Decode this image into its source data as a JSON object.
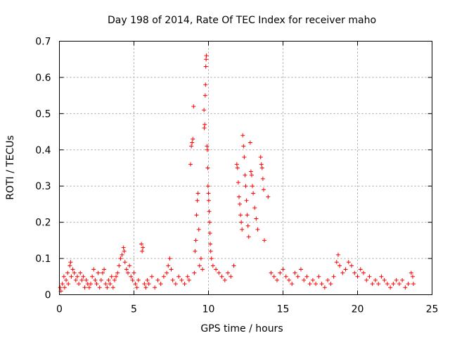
{
  "chart_data": {
    "type": "scatter",
    "title": "Day 198 of 2014, Rate Of TEC Index for receiver maho",
    "xlabel": "GPS time / hours",
    "ylabel": "ROTI / TECUs",
    "xlim": [
      0,
      25
    ],
    "ylim": [
      0,
      0.7
    ],
    "xticks": [
      0,
      5,
      10,
      15,
      20,
      25
    ],
    "yticks": [
      0,
      0.1,
      0.2,
      0.3,
      0.4,
      0.5,
      0.6,
      0.7
    ],
    "xtick_labels": [
      "0",
      "5",
      "10",
      "15",
      "20",
      "25"
    ],
    "ytick_labels": [
      "0",
      "0.1",
      "0.2",
      "0.3",
      "0.4",
      "0.5",
      "0.6",
      "0.7"
    ],
    "grid": true,
    "marker": "+",
    "color": "#ff0000",
    "series": [
      {
        "points": [
          [
            0.05,
            0.02
          ],
          [
            0.1,
            0.01
          ],
          [
            0.2,
            0.03
          ],
          [
            0.3,
            0.05
          ],
          [
            0.35,
            0.02
          ],
          [
            0.45,
            0.04
          ],
          [
            0.55,
            0.06
          ],
          [
            0.6,
            0.03
          ],
          [
            0.7,
            0.08
          ],
          [
            0.75,
            0.09
          ],
          [
            0.8,
            0.05
          ],
          [
            0.9,
            0.07
          ],
          [
            1.0,
            0.06
          ],
          [
            1.1,
            0.04
          ],
          [
            1.2,
            0.05
          ],
          [
            1.3,
            0.03
          ],
          [
            1.4,
            0.06
          ],
          [
            1.5,
            0.04
          ],
          [
            1.6,
            0.05
          ],
          [
            1.7,
            0.02
          ],
          [
            1.8,
            0.04
          ],
          [
            1.9,
            0.03
          ],
          [
            2.0,
            0.02
          ],
          [
            2.1,
            0.03
          ],
          [
            2.2,
            0.05
          ],
          [
            2.3,
            0.07
          ],
          [
            2.4,
            0.04
          ],
          [
            2.5,
            0.03
          ],
          [
            2.6,
            0.06
          ],
          [
            2.7,
            0.02
          ],
          [
            2.8,
            0.04
          ],
          [
            2.9,
            0.06
          ],
          [
            3.0,
            0.07
          ],
          [
            3.1,
            0.03
          ],
          [
            3.2,
            0.02
          ],
          [
            3.3,
            0.04
          ],
          [
            3.4,
            0.03
          ],
          [
            3.5,
            0.05
          ],
          [
            3.6,
            0.02
          ],
          [
            3.7,
            0.04
          ],
          [
            3.8,
            0.05
          ],
          [
            3.9,
            0.06
          ],
          [
            4.0,
            0.08
          ],
          [
            4.1,
            0.1
          ],
          [
            4.2,
            0.11
          ],
          [
            4.3,
            0.13
          ],
          [
            4.35,
            0.12
          ],
          [
            4.4,
            0.09
          ],
          [
            4.5,
            0.07
          ],
          [
            4.6,
            0.06
          ],
          [
            4.7,
            0.08
          ],
          [
            4.8,
            0.05
          ],
          [
            4.9,
            0.04
          ],
          [
            5.0,
            0.06
          ],
          [
            5.1,
            0.03
          ],
          [
            5.2,
            0.02
          ],
          [
            5.3,
            0.04
          ],
          [
            5.5,
            0.14
          ],
          [
            5.55,
            0.12
          ],
          [
            5.6,
            0.13
          ],
          [
            5.7,
            0.03
          ],
          [
            5.8,
            0.02
          ],
          [
            5.9,
            0.04
          ],
          [
            6.0,
            0.03
          ],
          [
            6.2,
            0.05
          ],
          [
            6.4,
            0.02
          ],
          [
            6.6,
            0.04
          ],
          [
            6.8,
            0.03
          ],
          [
            7.0,
            0.05
          ],
          [
            7.2,
            0.06
          ],
          [
            7.3,
            0.08
          ],
          [
            7.4,
            0.1
          ],
          [
            7.5,
            0.07
          ],
          [
            7.6,
            0.04
          ],
          [
            7.8,
            0.03
          ],
          [
            8.0,
            0.05
          ],
          [
            8.2,
            0.04
          ],
          [
            8.4,
            0.03
          ],
          [
            8.6,
            0.05
          ],
          [
            8.7,
            0.04
          ],
          [
            8.8,
            0.36
          ],
          [
            8.85,
            0.41
          ],
          [
            8.9,
            0.42
          ],
          [
            8.95,
            0.43
          ],
          [
            9.0,
            0.52
          ],
          [
            9.05,
            0.06
          ],
          [
            9.1,
            0.12
          ],
          [
            9.15,
            0.15
          ],
          [
            9.2,
            0.22
          ],
          [
            9.25,
            0.26
          ],
          [
            9.3,
            0.28
          ],
          [
            9.35,
            0.18
          ],
          [
            9.4,
            0.08
          ],
          [
            9.5,
            0.1
          ],
          [
            9.6,
            0.07
          ],
          [
            9.7,
            0.51
          ],
          [
            9.72,
            0.46
          ],
          [
            9.75,
            0.47
          ],
          [
            9.78,
            0.55
          ],
          [
            9.8,
            0.58
          ],
          [
            9.82,
            0.63
          ],
          [
            9.84,
            0.65
          ],
          [
            9.86,
            0.66
          ],
          [
            9.9,
            0.41
          ],
          [
            9.92,
            0.4
          ],
          [
            9.95,
            0.35
          ],
          [
            9.97,
            0.3
          ],
          [
            10.0,
            0.28
          ],
          [
            10.02,
            0.26
          ],
          [
            10.05,
            0.23
          ],
          [
            10.08,
            0.2
          ],
          [
            10.1,
            0.17
          ],
          [
            10.12,
            0.14
          ],
          [
            10.15,
            0.12
          ],
          [
            10.2,
            0.1
          ],
          [
            10.3,
            0.08
          ],
          [
            10.5,
            0.07
          ],
          [
            10.7,
            0.06
          ],
          [
            10.9,
            0.05
          ],
          [
            11.1,
            0.04
          ],
          [
            11.3,
            0.06
          ],
          [
            11.5,
            0.05
          ],
          [
            11.7,
            0.08
          ],
          [
            11.9,
            0.36
          ],
          [
            11.95,
            0.35
          ],
          [
            12.0,
            0.31
          ],
          [
            12.05,
            0.27
          ],
          [
            12.1,
            0.25
          ],
          [
            12.15,
            0.22
          ],
          [
            12.2,
            0.2
          ],
          [
            12.25,
            0.18
          ],
          [
            12.3,
            0.44
          ],
          [
            12.35,
            0.41
          ],
          [
            12.4,
            0.38
          ],
          [
            12.45,
            0.33
          ],
          [
            12.5,
            0.3
          ],
          [
            12.55,
            0.26
          ],
          [
            12.6,
            0.22
          ],
          [
            12.65,
            0.19
          ],
          [
            12.7,
            0.16
          ],
          [
            12.8,
            0.42
          ],
          [
            12.85,
            0.34
          ],
          [
            12.9,
            0.33
          ],
          [
            12.95,
            0.3
          ],
          [
            13.0,
            0.28
          ],
          [
            13.1,
            0.24
          ],
          [
            13.2,
            0.21
          ],
          [
            13.3,
            0.18
          ],
          [
            13.5,
            0.38
          ],
          [
            13.55,
            0.36
          ],
          [
            13.6,
            0.35
          ],
          [
            13.65,
            0.32
          ],
          [
            13.7,
            0.29
          ],
          [
            13.75,
            0.15
          ],
          [
            14.0,
            0.27
          ],
          [
            14.2,
            0.06
          ],
          [
            14.4,
            0.05
          ],
          [
            14.6,
            0.04
          ],
          [
            14.8,
            0.06
          ],
          [
            15.0,
            0.07
          ],
          [
            15.2,
            0.05
          ],
          [
            15.4,
            0.04
          ],
          [
            15.6,
            0.03
          ],
          [
            15.8,
            0.06
          ],
          [
            16.0,
            0.05
          ],
          [
            16.2,
            0.07
          ],
          [
            16.4,
            0.04
          ],
          [
            16.6,
            0.05
          ],
          [
            16.8,
            0.03
          ],
          [
            17.0,
            0.04
          ],
          [
            17.2,
            0.03
          ],
          [
            17.4,
            0.05
          ],
          [
            17.6,
            0.03
          ],
          [
            17.8,
            0.02
          ],
          [
            18.0,
            0.04
          ],
          [
            18.2,
            0.03
          ],
          [
            18.4,
            0.05
          ],
          [
            18.6,
            0.09
          ],
          [
            18.7,
            0.11
          ],
          [
            18.8,
            0.08
          ],
          [
            19.0,
            0.06
          ],
          [
            19.2,
            0.07
          ],
          [
            19.4,
            0.09
          ],
          [
            19.6,
            0.08
          ],
          [
            19.8,
            0.06
          ],
          [
            20.0,
            0.05
          ],
          [
            20.2,
            0.07
          ],
          [
            20.4,
            0.06
          ],
          [
            20.6,
            0.04
          ],
          [
            20.8,
            0.05
          ],
          [
            21.0,
            0.03
          ],
          [
            21.2,
            0.04
          ],
          [
            21.4,
            0.03
          ],
          [
            21.6,
            0.05
          ],
          [
            21.8,
            0.04
          ],
          [
            22.0,
            0.03
          ],
          [
            22.2,
            0.02
          ],
          [
            22.4,
            0.03
          ],
          [
            22.6,
            0.04
          ],
          [
            22.8,
            0.03
          ],
          [
            23.0,
            0.04
          ],
          [
            23.2,
            0.02
          ],
          [
            23.4,
            0.03
          ],
          [
            23.6,
            0.06
          ],
          [
            23.7,
            0.05
          ],
          [
            23.75,
            0.03
          ]
        ]
      }
    ]
  }
}
